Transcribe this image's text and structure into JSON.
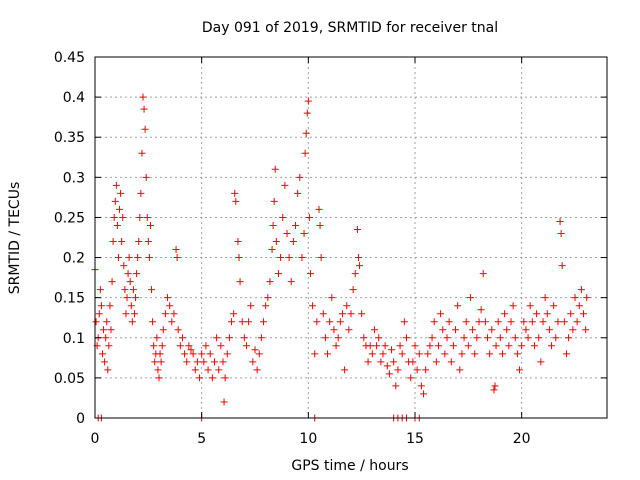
{
  "chart_data": {
    "type": "scatter",
    "title": "Day 091 of 2019, SRMTID for receiver tnal",
    "xlabel": "GPS time / hours",
    "ylabel": "SRMTID / TECUs",
    "xlim": [
      0,
      24
    ],
    "ylim": [
      0,
      0.45
    ],
    "grid": true,
    "marker": "+",
    "color": "#ff0000",
    "x_ticks": [
      0,
      5,
      10,
      15,
      20
    ],
    "x_tick_labels": [
      "0",
      "5",
      "10",
      "15",
      "20"
    ],
    "y_ticks": [
      0,
      0.05,
      0.1,
      0.15,
      0.2,
      0.25,
      0.3,
      0.35,
      0.4,
      0.45
    ],
    "y_tick_labels": [
      "0",
      "0.05",
      "0.1",
      "0.15",
      "0.2",
      "0.25",
      "0.3",
      "0.35",
      "0.4",
      "0.45"
    ],
    "series": [
      {
        "name": "SRMTID",
        "points": [
          [
            0.0,
            0.185
          ],
          [
            0.05,
            0.12
          ],
          [
            0.1,
            0.09
          ],
          [
            0.15,
            0.1
          ],
          [
            0.2,
            0.13
          ],
          [
            0.25,
            0.16
          ],
          [
            0.3,
            0.14
          ],
          [
            0.35,
            0.08
          ],
          [
            0.4,
            0.11
          ],
          [
            0.45,
            0.07
          ],
          [
            0.5,
            0.1
          ],
          [
            0.55,
            0.12
          ],
          [
            0.6,
            0.06
          ],
          [
            0.65,
            0.09
          ],
          [
            0.7,
            0.14
          ],
          [
            0.75,
            0.11
          ],
          [
            0.8,
            0.17
          ],
          [
            0.85,
            0.22
          ],
          [
            0.9,
            0.25
          ],
          [
            0.95,
            0.27
          ],
          [
            1.0,
            0.29
          ],
          [
            1.05,
            0.24
          ],
          [
            1.1,
            0.2
          ],
          [
            1.15,
            0.26
          ],
          [
            1.2,
            0.28
          ],
          [
            1.25,
            0.22
          ],
          [
            1.3,
            0.25
          ],
          [
            1.35,
            0.19
          ],
          [
            1.4,
            0.16
          ],
          [
            1.45,
            0.13
          ],
          [
            1.5,
            0.15
          ],
          [
            1.55,
            0.18
          ],
          [
            1.6,
            0.2
          ],
          [
            1.65,
            0.17
          ],
          [
            1.7,
            0.14
          ],
          [
            1.75,
            0.12
          ],
          [
            1.8,
            0.16
          ],
          [
            1.85,
            0.13
          ],
          [
            1.9,
            0.15
          ],
          [
            1.95,
            0.18
          ],
          [
            2.0,
            0.2
          ],
          [
            2.05,
            0.22
          ],
          [
            2.1,
            0.25
          ],
          [
            2.15,
            0.28
          ],
          [
            2.2,
            0.33
          ],
          [
            2.25,
            0.4
          ],
          [
            2.3,
            0.385
          ],
          [
            2.35,
            0.36
          ],
          [
            2.4,
            0.3
          ],
          [
            2.45,
            0.25
          ],
          [
            2.5,
            0.22
          ],
          [
            2.55,
            0.2
          ],
          [
            2.6,
            0.24
          ],
          [
            2.65,
            0.16
          ],
          [
            2.7,
            0.12
          ],
          [
            2.75,
            0.09
          ],
          [
            2.8,
            0.07
          ],
          [
            2.85,
            0.08
          ],
          [
            2.9,
            0.1
          ],
          [
            2.95,
            0.06
          ],
          [
            3.0,
            0.05
          ],
          [
            3.05,
            0.08
          ],
          [
            3.1,
            0.07
          ],
          [
            3.15,
            0.09
          ],
          [
            3.2,
            0.11
          ],
          [
            3.3,
            0.13
          ],
          [
            3.4,
            0.15
          ],
          [
            3.5,
            0.14
          ],
          [
            3.6,
            0.12
          ],
          [
            3.7,
            0.13
          ],
          [
            3.8,
            0.21
          ],
          [
            3.85,
            0.2
          ],
          [
            3.9,
            0.11
          ],
          [
            4.0,
            0.09
          ],
          [
            4.1,
            0.1
          ],
          [
            4.2,
            0.08
          ],
          [
            4.3,
            0.07
          ],
          [
            4.4,
            0.09
          ],
          [
            4.5,
            0.085
          ],
          [
            4.6,
            0.08
          ],
          [
            4.7,
            0.06
          ],
          [
            4.8,
            0.07
          ],
          [
            4.9,
            0.05
          ],
          [
            5.0,
            0.08
          ],
          [
            5.1,
            0.07
          ],
          [
            5.2,
            0.09
          ],
          [
            5.3,
            0.06
          ],
          [
            5.4,
            0.08
          ],
          [
            5.5,
            0.05
          ],
          [
            5.6,
            0.07
          ],
          [
            5.7,
            0.1
          ],
          [
            5.8,
            0.06
          ],
          [
            5.9,
            0.09
          ],
          [
            6.0,
            0.07
          ],
          [
            6.05,
            0.02
          ],
          [
            6.1,
            0.05
          ],
          [
            6.2,
            0.08
          ],
          [
            6.3,
            0.1
          ],
          [
            6.4,
            0.12
          ],
          [
            6.5,
            0.13
          ],
          [
            6.55,
            0.28
          ],
          [
            6.6,
            0.27
          ],
          [
            6.7,
            0.22
          ],
          [
            6.75,
            0.2
          ],
          [
            6.8,
            0.17
          ],
          [
            6.9,
            0.12
          ],
          [
            7.0,
            0.1
          ],
          [
            7.1,
            0.09
          ],
          [
            7.2,
            0.12
          ],
          [
            7.3,
            0.14
          ],
          [
            7.4,
            0.07
          ],
          [
            7.5,
            0.085
          ],
          [
            7.6,
            0.06
          ],
          [
            7.7,
            0.08
          ],
          [
            7.8,
            0.1
          ],
          [
            7.9,
            0.12
          ],
          [
            8.0,
            0.14
          ],
          [
            8.1,
            0.15
          ],
          [
            8.2,
            0.17
          ],
          [
            8.3,
            0.21
          ],
          [
            8.35,
            0.24
          ],
          [
            8.4,
            0.27
          ],
          [
            8.45,
            0.31
          ],
          [
            8.5,
            0.22
          ],
          [
            8.6,
            0.18
          ],
          [
            8.7,
            0.2
          ],
          [
            8.8,
            0.25
          ],
          [
            8.9,
            0.29
          ],
          [
            9.0,
            0.23
          ],
          [
            9.1,
            0.2
          ],
          [
            9.2,
            0.17
          ],
          [
            9.3,
            0.22
          ],
          [
            9.4,
            0.24
          ],
          [
            9.5,
            0.28
          ],
          [
            9.6,
            0.3
          ],
          [
            9.7,
            0.2
          ],
          [
            9.8,
            0.23
          ],
          [
            9.85,
            0.33
          ],
          [
            9.9,
            0.355
          ],
          [
            9.95,
            0.38
          ],
          [
            10.0,
            0.395
          ],
          [
            10.05,
            0.25
          ],
          [
            10.1,
            0.18
          ],
          [
            10.2,
            0.14
          ],
          [
            10.3,
            0.08
          ],
          [
            10.4,
            0.12
          ],
          [
            10.5,
            0.26
          ],
          [
            10.55,
            0.24
          ],
          [
            10.6,
            0.2
          ],
          [
            10.7,
            0.13
          ],
          [
            10.8,
            0.1
          ],
          [
            10.9,
            0.08
          ],
          [
            11.0,
            0.12
          ],
          [
            11.1,
            0.15
          ],
          [
            11.2,
            0.11
          ],
          [
            11.3,
            0.09
          ],
          [
            11.4,
            0.1
          ],
          [
            11.5,
            0.12
          ],
          [
            11.6,
            0.13
          ],
          [
            11.7,
            0.06
          ],
          [
            11.8,
            0.14
          ],
          [
            11.9,
            0.11
          ],
          [
            12.0,
            0.13
          ],
          [
            12.1,
            0.16
          ],
          [
            12.2,
            0.18
          ],
          [
            12.3,
            0.235
          ],
          [
            12.35,
            0.2
          ],
          [
            12.4,
            0.19
          ],
          [
            12.5,
            0.13
          ],
          [
            12.6,
            0.1
          ],
          [
            12.7,
            0.09
          ],
          [
            12.8,
            0.07
          ],
          [
            12.9,
            0.09
          ],
          [
            13.0,
            0.08
          ],
          [
            13.1,
            0.11
          ],
          [
            13.2,
            0.09
          ],
          [
            13.3,
            0.1
          ],
          [
            13.4,
            0.07
          ],
          [
            13.5,
            0.08
          ],
          [
            13.6,
            0.09
          ],
          [
            13.7,
            0.065
          ],
          [
            13.8,
            0.055
          ],
          [
            13.9,
            0.085
          ],
          [
            14.0,
            0.07
          ],
          [
            14.1,
            0.04
          ],
          [
            14.2,
            0.06
          ],
          [
            14.3,
            0.09
          ],
          [
            14.4,
            0.08
          ],
          [
            14.5,
            0.12
          ],
          [
            14.6,
            0.1
          ],
          [
            14.7,
            0.07
          ],
          [
            14.8,
            0.05
          ],
          [
            14.9,
            0.07
          ],
          [
            15.0,
            0.09
          ],
          [
            15.1,
            0.06
          ],
          [
            15.2,
            0.08
          ],
          [
            15.3,
            0.04
          ],
          [
            15.4,
            0.03
          ],
          [
            15.5,
            0.06
          ],
          [
            15.6,
            0.08
          ],
          [
            15.7,
            0.09
          ],
          [
            15.8,
            0.1
          ],
          [
            15.9,
            0.12
          ],
          [
            16.0,
            0.07
          ],
          [
            16.1,
            0.09
          ],
          [
            16.2,
            0.13
          ],
          [
            16.3,
            0.11
          ],
          [
            16.4,
            0.08
          ],
          [
            16.5,
            0.1
          ],
          [
            16.6,
            0.12
          ],
          [
            16.7,
            0.07
          ],
          [
            16.8,
            0.09
          ],
          [
            16.9,
            0.11
          ],
          [
            17.0,
            0.14
          ],
          [
            17.1,
            0.06
          ],
          [
            17.2,
            0.08
          ],
          [
            17.3,
            0.1
          ],
          [
            17.4,
            0.12
          ],
          [
            17.5,
            0.09
          ],
          [
            17.6,
            0.15
          ],
          [
            17.7,
            0.11
          ],
          [
            17.8,
            0.08
          ],
          [
            17.9,
            0.1
          ],
          [
            18.0,
            0.12
          ],
          [
            18.1,
            0.135
          ],
          [
            18.2,
            0.18
          ],
          [
            18.3,
            0.12
          ],
          [
            18.4,
            0.1
          ],
          [
            18.5,
            0.08
          ],
          [
            18.6,
            0.11
          ],
          [
            18.7,
            0.035
          ],
          [
            18.75,
            0.04
          ],
          [
            18.8,
            0.09
          ],
          [
            18.9,
            0.12
          ],
          [
            19.0,
            0.1
          ],
          [
            19.1,
            0.08
          ],
          [
            19.2,
            0.13
          ],
          [
            19.3,
            0.11
          ],
          [
            19.4,
            0.09
          ],
          [
            19.5,
            0.12
          ],
          [
            19.6,
            0.14
          ],
          [
            19.7,
            0.1
          ],
          [
            19.8,
            0.08
          ],
          [
            19.9,
            0.06
          ],
          [
            20.0,
            0.09
          ],
          [
            20.1,
            0.12
          ],
          [
            20.2,
            0.11
          ],
          [
            20.3,
            0.1
          ],
          [
            20.4,
            0.14
          ],
          [
            20.5,
            0.12
          ],
          [
            20.6,
            0.09
          ],
          [
            20.7,
            0.13
          ],
          [
            20.8,
            0.1
          ],
          [
            20.9,
            0.07
          ],
          [
            21.0,
            0.12
          ],
          [
            21.1,
            0.15
          ],
          [
            21.2,
            0.13
          ],
          [
            21.3,
            0.11
          ],
          [
            21.4,
            0.09
          ],
          [
            21.5,
            0.14
          ],
          [
            21.6,
            0.1
          ],
          [
            21.7,
            0.12
          ],
          [
            21.8,
            0.245
          ],
          [
            21.85,
            0.23
          ],
          [
            21.9,
            0.19
          ],
          [
            22.0,
            0.12
          ],
          [
            22.1,
            0.08
          ],
          [
            22.2,
            0.1
          ],
          [
            22.3,
            0.13
          ],
          [
            22.4,
            0.11
          ],
          [
            22.5,
            0.15
          ],
          [
            22.6,
            0.12
          ],
          [
            22.7,
            0.14
          ],
          [
            22.8,
            0.16
          ],
          [
            22.9,
            0.13
          ],
          [
            23.0,
            0.11
          ],
          [
            23.05,
            0.15
          ]
        ],
        "zero_points": [
          0.15,
          0.3,
          5.0,
          10.3,
          14.0,
          14.2,
          14.4,
          14.6,
          15.0,
          15.2
        ]
      }
    ]
  }
}
